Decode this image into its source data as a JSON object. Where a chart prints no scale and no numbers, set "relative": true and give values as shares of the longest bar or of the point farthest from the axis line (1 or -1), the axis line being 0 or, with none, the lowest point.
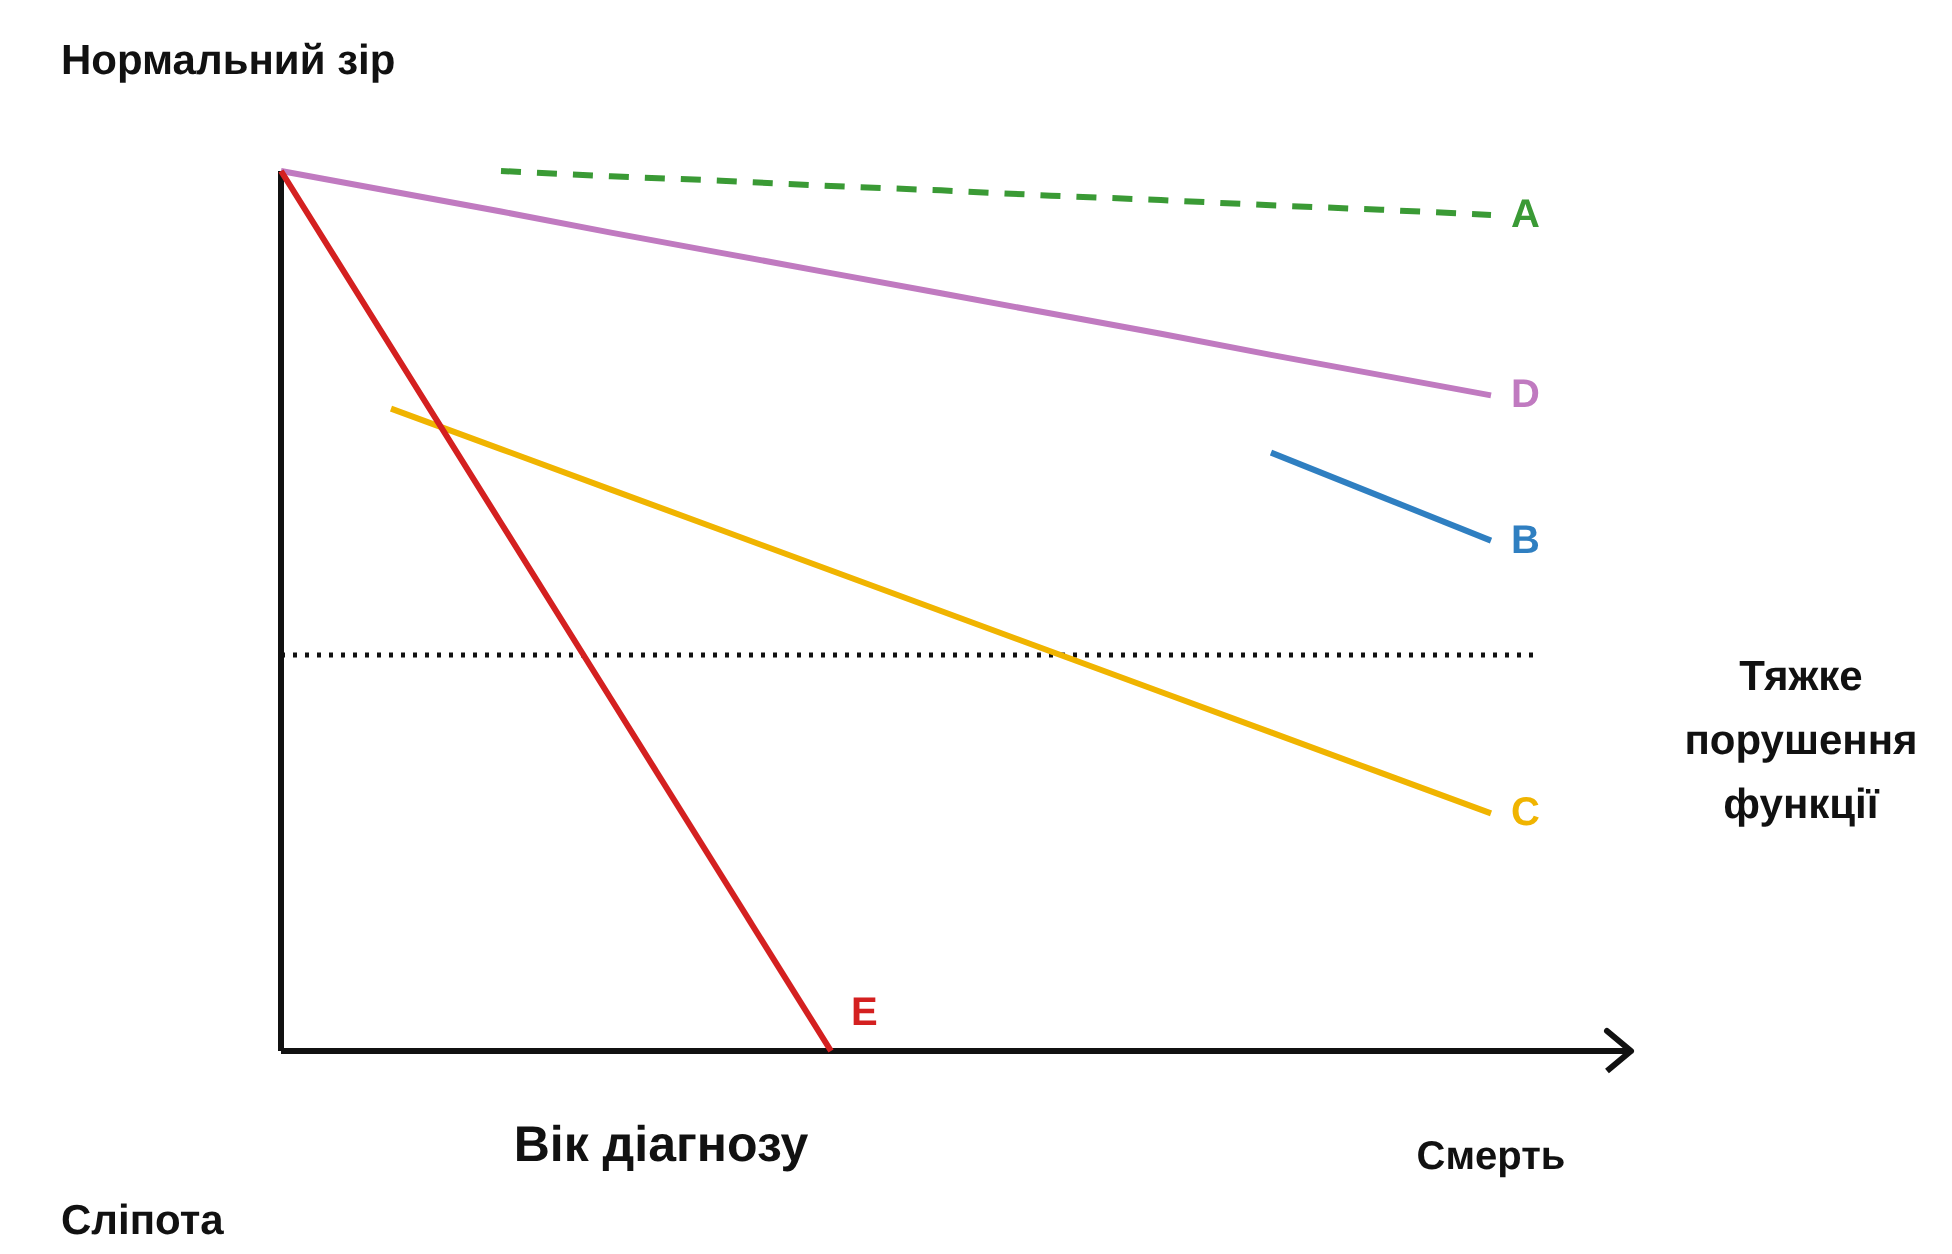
{
  "chart_data": {
    "type": "line",
    "relative": true,
    "categories": [
      null,
      null,
      null,
      null,
      null,
      null,
      null,
      null,
      null,
      null,
      null,
      null
    ],
    "xlabel": "Вік діагнозу",
    "legend": false,
    "grid": false,
    "tick_labels": false,
    "annotations": [
      "Нормальний зір",
      "Сліпота",
      "Смерть"
    ],
    "ref_lines": [
      {
        "axis": "y",
        "value": 0.45,
        "label": "Тяжке порушення функції",
        "color": "#111111",
        "line_style": "dotted"
      }
    ],
    "series": [
      {
        "name": "A",
        "color": "#3a9a35",
        "line_style": "dashed",
        "values": [
          null,
          null,
          1.0,
          0.994,
          0.989,
          0.983,
          0.978,
          0.972,
          0.967,
          0.961,
          0.956,
          0.95
        ]
      },
      {
        "name": "D",
        "color": "#c07ac0",
        "values": [
          1.0,
          0.977,
          0.954,
          0.93,
          0.907,
          0.884,
          0.861,
          0.838,
          0.815,
          0.791,
          0.768,
          0.745
        ]
      },
      {
        "name": "B",
        "color": "#2f7fc1",
        "values": [
          null,
          null,
          null,
          null,
          null,
          null,
          null,
          null,
          null,
          0.68,
          0.63,
          0.58
        ]
      },
      {
        "name": "C",
        "color": "#f0b400",
        "values": [
          null,
          0.73,
          0.684,
          0.638,
          0.592,
          0.546,
          0.5,
          0.454,
          0.408,
          0.362,
          0.316,
          0.27
        ]
      },
      {
        "name": "E",
        "color": "#d42020",
        "values": [
          1.0,
          0.8,
          0.6,
          0.4,
          0.2,
          0.0,
          null,
          null,
          null,
          null,
          null,
          null
        ]
      }
    ]
  }
}
